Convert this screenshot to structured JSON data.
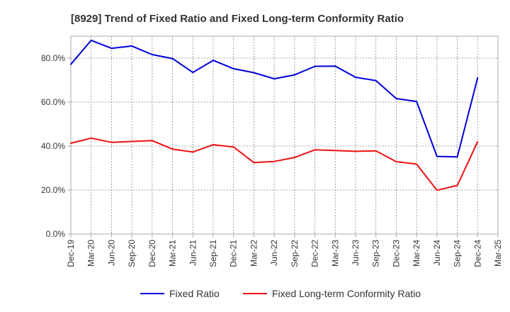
{
  "chart_data": {
    "type": "line",
    "title": "[8929]  Trend of Fixed Ratio and Fixed Long-term Conformity Ratio",
    "xlabel": "",
    "ylabel": "",
    "x": [
      "Dec-19",
      "Mar-20",
      "Jun-20",
      "Sep-20",
      "Dec-20",
      "Mar-21",
      "Jun-21",
      "Sep-21",
      "Dec-21",
      "Mar-22",
      "Jun-22",
      "Sep-22",
      "Dec-22",
      "Mar-23",
      "Jun-23",
      "Sep-23",
      "Dec-23",
      "Mar-24",
      "Jun-24",
      "Sep-24",
      "Dec-24",
      "Mar-25"
    ],
    "ylim": [
      0,
      90
    ],
    "yticks": [
      0,
      20,
      40,
      60,
      80
    ],
    "ytick_labels": [
      "0.0%",
      "20.0%",
      "40.0%",
      "60.0%",
      "80.0%"
    ],
    "grid": true,
    "legend_position": "bottom",
    "series": [
      {
        "name": "Fixed Ratio",
        "color": "#0000dd",
        "values": [
          77.2,
          88.1,
          84.5,
          85.5,
          81.6,
          79.8,
          73.5,
          79.0,
          75.2,
          73.4,
          70.6,
          72.4,
          76.3,
          76.4,
          71.3,
          69.8,
          61.6,
          60.3,
          35.3,
          35.1,
          71.0,
          null
        ]
      },
      {
        "name": "Fixed Long-term Conformity Ratio",
        "color": "#ee1111",
        "values": [
          41.3,
          43.6,
          41.7,
          42.1,
          42.5,
          38.6,
          37.3,
          40.6,
          39.6,
          32.5,
          33.0,
          34.8,
          38.3,
          38.0,
          37.6,
          37.8,
          32.9,
          31.8,
          19.9,
          22.1,
          42.0,
          null
        ]
      }
    ]
  }
}
